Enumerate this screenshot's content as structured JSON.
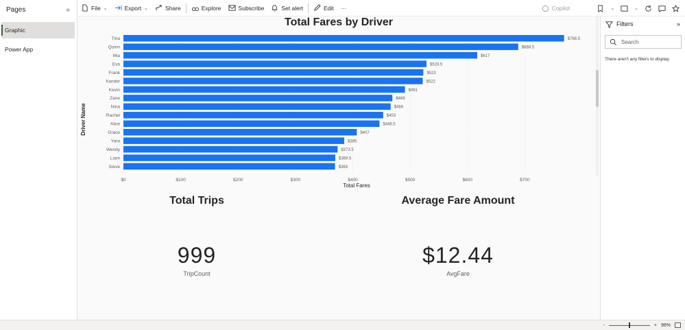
{
  "pages": {
    "header": "Pages",
    "collapse_glyph": "«",
    "items": [
      {
        "label": "Graphic",
        "active": true
      },
      {
        "label": "Power App",
        "active": false
      }
    ]
  },
  "toolbar": {
    "file": "File",
    "export": "Export",
    "share": "Share",
    "explore": "Explore",
    "subscribe": "Subscribe",
    "set_alert": "Set alert",
    "edit": "Edit",
    "more": "···",
    "copilot": "Copilot"
  },
  "chart_data": {
    "type": "bar",
    "orientation": "horizontal",
    "title": "Total Fares by Driver",
    "xlabel": "Total Fares",
    "ylabel": "Driver Name",
    "categories": [
      "Tina",
      "Quinn",
      "Mia",
      "Eva",
      "Frank",
      "Xander",
      "Kevin",
      "Zane",
      "Nina",
      "Rachel",
      "Alice",
      "Grace",
      "Yara",
      "Wendy",
      "Liam",
      "Steve"
    ],
    "values": [
      768.5,
      688.5,
      617,
      528.5,
      523,
      522,
      491,
      469,
      466,
      453,
      446.5,
      407,
      385,
      373.5,
      369.5,
      369
    ],
    "data_labels": [
      "$768.5",
      "$688.5",
      "$617",
      "$528.5",
      "$523",
      "$522",
      "$491",
      "$469",
      "$466",
      "$453",
      "$446.5",
      "$407",
      "$385",
      "$373.5",
      "$369.5",
      "$369"
    ],
    "xticks": [
      0,
      100,
      200,
      300,
      400,
      500,
      600,
      700
    ],
    "xtick_labels": [
      "$0",
      "$100",
      "$200",
      "$300",
      "$400",
      "$500",
      "$600",
      "$700"
    ],
    "xlim": [
      0,
      800
    ],
    "bar_color": "#1a73f0"
  },
  "kpis": [
    {
      "title": "Total Trips",
      "value": "999",
      "label": "TripCount"
    },
    {
      "title": "Average Fare Amount",
      "value": "$12.44",
      "label": "AvgFare"
    }
  ],
  "filters": {
    "title": "Filters",
    "expand_glyph": "»",
    "search_placeholder": "Search",
    "empty_message": "There aren't any filters to display."
  },
  "status": {
    "zoom_minus": "-",
    "zoom_plus": "+",
    "zoom_level": "98%"
  }
}
